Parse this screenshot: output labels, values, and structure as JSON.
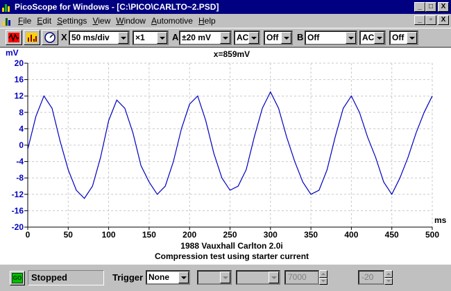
{
  "window": {
    "title": "PicoScope for Windows - [C:\\PICO\\CARLTO~2.PSD]",
    "caption_buttons": [
      "_",
      "□",
      "X"
    ],
    "mdi_buttons": [
      "_",
      "▫",
      "X"
    ]
  },
  "menu": {
    "items": [
      {
        "label": "File",
        "underline": "F"
      },
      {
        "label": "Edit",
        "underline": "E"
      },
      {
        "label": "Settings",
        "underline": "S"
      },
      {
        "label": "View",
        "underline": "V"
      },
      {
        "label": "Window",
        "underline": "W"
      },
      {
        "label": "Automotive",
        "underline": "A"
      },
      {
        "label": "Help",
        "underline": "H"
      }
    ]
  },
  "toolbar": {
    "buttons": [
      "scope-icon",
      "spectrum-icon",
      "meter-icon"
    ],
    "x_label": "X",
    "timebase": "50 ms/div",
    "multiplier": "×1",
    "a_label": "A",
    "a_range": "±20 mV",
    "a_coupling": "AC",
    "a_extra": "Off",
    "b_label": "B",
    "b_range": "Off",
    "b_coupling": "AC",
    "b_extra": "Off"
  },
  "plot": {
    "y_unit": "mV",
    "x_unit": "ms",
    "cursor_readout": "x=859mV",
    "caption_line1": "1988 Vauxhall Carlton  2.0i",
    "caption_line2": "Compression test using starter current",
    "trace_color": "#0000c0",
    "axis_label_color": "#0000c0"
  },
  "status": {
    "go_label": "GO",
    "state": "Stopped",
    "trigger_label": "Trigger",
    "trigger_mode": "None",
    "trigger_source": "",
    "trigger_direction": "",
    "threshold": "7000",
    "delay": "-20"
  },
  "chart_data": {
    "type": "line",
    "xlabel": "ms",
    "ylabel": "mV",
    "xlim": [
      0,
      500
    ],
    "ylim": [
      -20,
      20
    ],
    "x_ticks": [
      0,
      50,
      100,
      150,
      200,
      250,
      300,
      350,
      400,
      450,
      500
    ],
    "y_ticks": [
      -20,
      -16,
      -12,
      -8,
      -4,
      0,
      4,
      8,
      12,
      16,
      20
    ],
    "grid": true,
    "series": [
      {
        "x": [
          0,
          10,
          20,
          30,
          40,
          50,
          60,
          70,
          80,
          90,
          100,
          110,
          120,
          130,
          140,
          150,
          160,
          170,
          180,
          190,
          200,
          210,
          220,
          230,
          240,
          250,
          260,
          270,
          280,
          290,
          300,
          310,
          320,
          330,
          340,
          350,
          360,
          370,
          380,
          390,
          400,
          410,
          420,
          430,
          440,
          450,
          460,
          470,
          480,
          490,
          500
        ],
        "y": [
          -1,
          7,
          12,
          9,
          1,
          -6,
          -11,
          -13,
          -10,
          -3,
          6,
          11,
          9,
          3,
          -5,
          -9,
          -12,
          -10,
          -4,
          4,
          10,
          12,
          6,
          -2,
          -8,
          -11,
          -10,
          -6,
          2,
          9,
          13,
          9,
          2,
          -4,
          -9,
          -12,
          -11,
          -6,
          2,
          9,
          12,
          8,
          2,
          -3,
          -9,
          -12,
          -8,
          -3,
          3,
          8,
          12
        ]
      }
    ]
  }
}
